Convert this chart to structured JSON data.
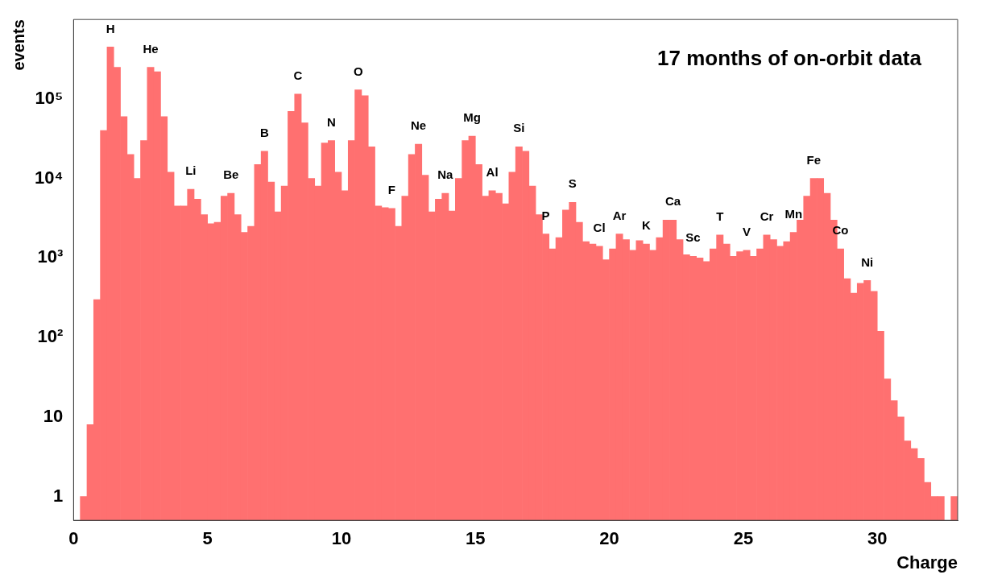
{
  "chart_data": {
    "type": "histogram",
    "xlabel": "Charge",
    "ylabel": "events",
    "log": "y",
    "grid": false,
    "xlim": [
      0,
      33
    ],
    "xticks": [
      0,
      5,
      10,
      15,
      20,
      25,
      30
    ],
    "ylim": [
      0.5,
      1000000
    ],
    "yticks": [
      1,
      10,
      {
        "value": 100,
        "label": "10²"
      },
      {
        "value": 1000,
        "label": "10³"
      },
      {
        "value": 10000,
        "label": "10⁴"
      },
      {
        "value": 100000,
        "label": "10⁵"
      }
    ],
    "color": "#ff7070",
    "bins": [
      0,
      0.25,
      0.5,
      0.75,
      1,
      1.25,
      1.5,
      1.75,
      2,
      2.25,
      2.5,
      2.75,
      3,
      3.25,
      3.5,
      3.75,
      4,
      4.25,
      4.5,
      4.75,
      5,
      5.25,
      5.5,
      5.75,
      6,
      6.25,
      6.5,
      6.75,
      7,
      7.25,
      7.5,
      7.75,
      8,
      8.25,
      8.5,
      8.75,
      9,
      9.25,
      9.5,
      9.75,
      10,
      10.25,
      10.5,
      10.75,
      11,
      11.25,
      11.5,
      11.75,
      12,
      12.25,
      12.5,
      12.75,
      13,
      13.25,
      13.5,
      13.75,
      14,
      14.25,
      14.5,
      14.75,
      15,
      15.25,
      15.5,
      15.75,
      16,
      16.25,
      16.5,
      16.75,
      17,
      17.25,
      17.5,
      17.75,
      18,
      18.25,
      18.5,
      18.75,
      19,
      19.25,
      19.5,
      19.75,
      20,
      20.25,
      20.5,
      20.75,
      21,
      21.25,
      21.5,
      21.75,
      22,
      22.25,
      22.5,
      22.75,
      23,
      23.25,
      23.5,
      23.75,
      24,
      24.25,
      24.5,
      24.75,
      25,
      25.25,
      25.5,
      25.75,
      26,
      26.25,
      26.5,
      26.75,
      27,
      27.25,
      27.5,
      27.75,
      28,
      28.25,
      28.5,
      28.75,
      29,
      29.25,
      29.5,
      29.75,
      30,
      30.25,
      30.5,
      30.75,
      31,
      31.25,
      31.5,
      31.75,
      32,
      32.25,
      32.5,
      32.75,
      33
    ],
    "values": [
      null,
      1,
      8,
      300,
      40000,
      450000,
      250000,
      60000,
      20000,
      10000,
      30000,
      250000,
      220000,
      60000,
      12000,
      4500,
      4500,
      7300,
      5500,
      3500,
      2700,
      2800,
      6000,
      6500,
      3500,
      2100,
      2500,
      15000,
      22000,
      9000,
      3800,
      8000,
      70000,
      115000,
      50000,
      10000,
      8000,
      28000,
      30000,
      12000,
      7000,
      30000,
      130000,
      110000,
      25000,
      4500,
      4300,
      4200,
      2500,
      6000,
      20000,
      27000,
      11000,
      3800,
      5500,
      6500,
      3900,
      10000,
      30000,
      34000,
      15000,
      6000,
      7000,
      6500,
      4800,
      12000,
      25000,
      22000,
      8000,
      3500,
      2000,
      1300,
      1800,
      4000,
      5000,
      2800,
      1600,
      1500,
      1400,
      950,
      1300,
      2000,
      1700,
      1250,
      1650,
      1500,
      1250,
      1800,
      3000,
      3000,
      1700,
      1100,
      1050,
      1000,
      900,
      1300,
      1950,
      1500,
      1050,
      1200,
      1250,
      1050,
      1300,
      1950,
      1700,
      1400,
      1600,
      2100,
      3000,
      6000,
      10000,
      10000,
      6500,
      3000,
      1300,
      550,
      360,
      480,
      520,
      380,
      120,
      30,
      16,
      10,
      5,
      4,
      3,
      1.5,
      1,
      1,
      null,
      1
    ],
    "annotations": [
      "17 months of on-orbit data",
      {
        "text": "H",
        "x": 1.375,
        "y": 450000
      },
      {
        "text": "He",
        "x": 2.875,
        "y": 250000
      },
      {
        "text": "Li",
        "x": 4.375,
        "y": 7300
      },
      {
        "text": "Be",
        "x": 5.875,
        "y": 6500
      },
      {
        "text": "B",
        "x": 7.125,
        "y": 22000
      },
      {
        "text": "C",
        "x": 8.375,
        "y": 115000
      },
      {
        "text": "N",
        "x": 9.625,
        "y": 30000
      },
      {
        "text": "O",
        "x": 10.625,
        "y": 130000
      },
      {
        "text": "F",
        "x": 11.875,
        "y": 4200
      },
      {
        "text": "Ne",
        "x": 12.875,
        "y": 27000
      },
      {
        "text": "Na",
        "x": 13.875,
        "y": 6500
      },
      {
        "text": "Mg",
        "x": 14.875,
        "y": 34000
      },
      {
        "text": "Al",
        "x": 15.625,
        "y": 7000
      },
      {
        "text": "Si",
        "x": 16.625,
        "y": 25000
      },
      {
        "text": "P",
        "x": 17.625,
        "y": 2000
      },
      {
        "text": "S",
        "x": 18.625,
        "y": 5000
      },
      {
        "text": "Cl",
        "x": 19.625,
        "y": 1400
      },
      {
        "text": "Ar",
        "x": 20.375,
        "y": 2000
      },
      {
        "text": "K",
        "x": 21.375,
        "y": 1500
      },
      {
        "text": "Ca",
        "x": 22.375,
        "y": 3000
      },
      {
        "text": "Sc",
        "x": 23.125,
        "y": 1050
      },
      {
        "text": "T",
        "x": 24.125,
        "y": 1950
      },
      {
        "text": "V",
        "x": 25.125,
        "y": 1250
      },
      {
        "text": "Cr",
        "x": 25.875,
        "y": 1950
      },
      {
        "text": "Mn",
        "x": 26.875,
        "y": 2100
      },
      {
        "text": "Fe",
        "x": 27.625,
        "y": 10000
      },
      {
        "text": "Co",
        "x": 28.625,
        "y": 1300
      },
      {
        "text": "Ni",
        "x": 29.625,
        "y": 520
      }
    ]
  }
}
